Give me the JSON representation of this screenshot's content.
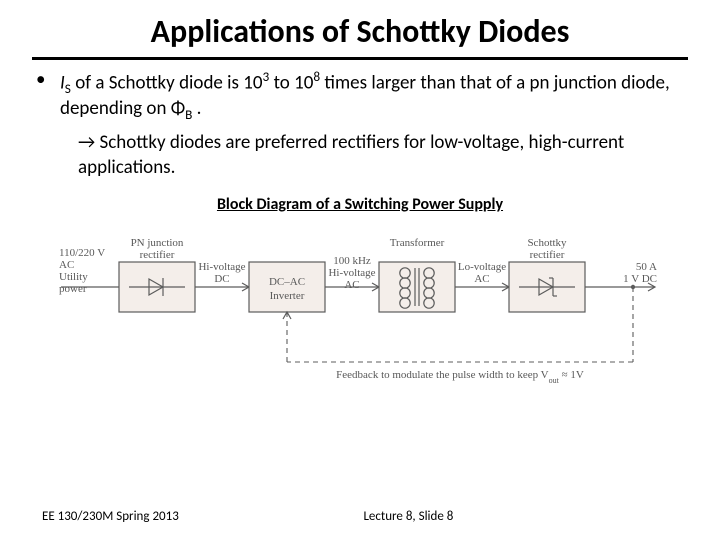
{
  "title": "Applications of Schottky Diodes",
  "bullet1_pre": "I",
  "bullet1_sub": "S",
  "bullet1_mid": " of a Schottky diode is 10",
  "bullet1_sup1": "3",
  "bullet1_to": " to 10",
  "bullet1_sup2": "8",
  "bullet1_tail": " times larger than that of a pn junction diode, depending on Φ",
  "bullet1_sub2": "B",
  "bullet1_end": " .",
  "arrow": "→",
  "bullet2": " Schottky diodes are preferred rectifiers for low-voltage, high-current applications.",
  "diagram_title": "Block Diagram of a Switching Power Supply",
  "diagram": {
    "box_fill": "#f4eeea",
    "box_stroke": "#5c5c5c",
    "line_color": "#5c5c5c",
    "dash_color": "#5c5c5c",
    "text_color": "#585858",
    "blocks": [
      {
        "label_top": "PN junction",
        "label_bot": "rectifier",
        "symbol": "diode"
      },
      {
        "label_top": "",
        "label_bot": "",
        "text1": "DC–AC",
        "text2": "Inverter"
      },
      {
        "label_top": "Transformer",
        "label_bot": "",
        "symbol": "transformer"
      },
      {
        "label_top": "Schottky",
        "label_bot": "rectifier",
        "symbol": "schottky"
      }
    ],
    "left_labels": [
      "110/220 V",
      "AC",
      "Utility",
      "power"
    ],
    "mid_labels1": [
      "Hi-voltage",
      "DC"
    ],
    "mid_labels2": [
      "100 kHz",
      "Hi-voltage",
      "AC"
    ],
    "mid_labels3": [
      "Lo-voltage",
      "AC"
    ],
    "right_labels": [
      "50 A",
      "1 V DC"
    ],
    "feedback": "Feedback to modulate the pulse width to keep V",
    "feedback_sub": "out",
    "feedback_tail": " ≈ 1V"
  },
  "footer_left": "EE 130/230M Spring 2013",
  "footer_center": "Lecture 8, Slide 8"
}
